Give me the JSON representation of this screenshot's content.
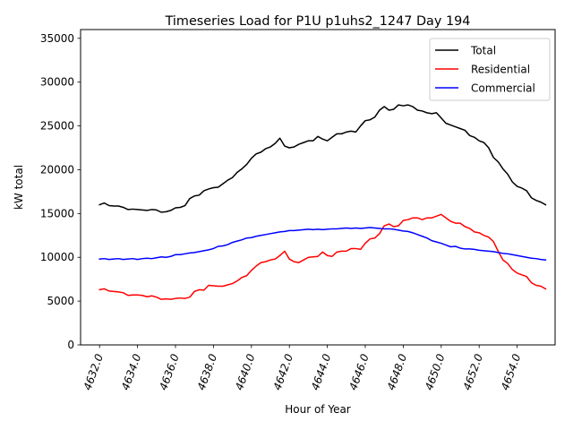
{
  "chart_data": {
    "type": "line",
    "title": "Timeseries Load for P1U p1uhs2_1247  Day 194",
    "xlabel": "Hour of Year",
    "ylabel": "kW total",
    "xlim": [
      4631.0,
      4656.0
    ],
    "ylim": [
      0,
      36000
    ],
    "x_ticks": [
      4632.0,
      4634.0,
      4636.0,
      4638.0,
      4640.0,
      4642.0,
      4644.0,
      4646.0,
      4648.0,
      4650.0,
      4652.0,
      4654.0
    ],
    "x_tick_labels": [
      "4632.0",
      "4634.0",
      "4636.0",
      "4638.0",
      "4640.0",
      "4642.0",
      "4644.0",
      "4646.0",
      "4648.0",
      "4650.0",
      "4652.0",
      "4654.0"
    ],
    "y_ticks": [
      0,
      5000,
      10000,
      15000,
      20000,
      25000,
      30000,
      35000
    ],
    "y_tick_labels": [
      "0",
      "5000",
      "10000",
      "15000",
      "20000",
      "25000",
      "30000",
      "35000"
    ],
    "legend_position": "top-right",
    "x_start": 4632.0,
    "x_step": 0.25,
    "series": [
      {
        "name": "Total",
        "color": "#000000",
        "values": [
          16000,
          16200,
          15900,
          15850,
          15850,
          15700,
          15450,
          15500,
          15450,
          15400,
          15350,
          15450,
          15400,
          15150,
          15200,
          15350,
          15650,
          15700,
          15900,
          16700,
          17000,
          17100,
          17600,
          17800,
          17950,
          18000,
          18400,
          18800,
          19100,
          19700,
          20100,
          20600,
          21300,
          21800,
          22000,
          22400,
          22600,
          23000,
          23600,
          22700,
          22500,
          22600,
          22900,
          23100,
          23300,
          23300,
          23800,
          23500,
          23300,
          23700,
          24100,
          24100,
          24300,
          24400,
          24300,
          25000,
          25600,
          25700,
          26000,
          26800,
          27200,
          26800,
          26900,
          27400,
          27300,
          27400,
          27200,
          26800,
          26700,
          26500,
          26400,
          26500,
          25900,
          25300,
          25100,
          24900,
          24700,
          24500,
          23900,
          23700,
          23300,
          23100,
          22500,
          21400,
          20900,
          20100,
          19500,
          18600,
          18100,
          17900,
          17600,
          16800,
          16500,
          16300,
          16000
        ]
      },
      {
        "name": "Residential",
        "color": "#ff0000",
        "values": [
          6300,
          6400,
          6150,
          6100,
          6050,
          5950,
          5650,
          5700,
          5700,
          5650,
          5500,
          5600,
          5450,
          5200,
          5250,
          5200,
          5300,
          5350,
          5300,
          5450,
          6100,
          6300,
          6250,
          6800,
          6750,
          6700,
          6700,
          6850,
          7000,
          7300,
          7700,
          7900,
          8500,
          9000,
          9400,
          9500,
          9700,
          9800,
          10200,
          10700,
          9800,
          9500,
          9400,
          9700,
          10000,
          10050,
          10100,
          10600,
          10200,
          10100,
          10600,
          10700,
          10700,
          11000,
          11000,
          10900,
          11600,
          12100,
          12200,
          12700,
          13600,
          13800,
          13500,
          13600,
          14200,
          14300,
          14500,
          14500,
          14300,
          14500,
          14500,
          14700,
          14900,
          14500,
          14100,
          13900,
          13900,
          13500,
          13300,
          12900,
          12800,
          12500,
          12300,
          11800,
          10700,
          9700,
          9300,
          8600,
          8200,
          8000,
          7800,
          7100,
          6800,
          6700,
          6400
        ]
      },
      {
        "name": "Commercial",
        "color": "#0000ff",
        "values": [
          9800,
          9850,
          9750,
          9800,
          9850,
          9750,
          9800,
          9850,
          9750,
          9850,
          9900,
          9850,
          9950,
          10050,
          10000,
          10100,
          10300,
          10300,
          10400,
          10500,
          10550,
          10650,
          10750,
          10850,
          11000,
          11250,
          11300,
          11450,
          11700,
          11850,
          12000,
          12200,
          12250,
          12400,
          12500,
          12600,
          12700,
          12800,
          12900,
          12950,
          13050,
          13050,
          13100,
          13150,
          13200,
          13150,
          13200,
          13150,
          13200,
          13250,
          13250,
          13300,
          13350,
          13300,
          13350,
          13300,
          13350,
          13400,
          13350,
          13300,
          13250,
          13250,
          13200,
          13100,
          13000,
          12950,
          12800,
          12600,
          12400,
          12200,
          11900,
          11750,
          11600,
          11400,
          11200,
          11250,
          11050,
          10950,
          10950,
          10900,
          10800,
          10750,
          10700,
          10650,
          10550,
          10450,
          10400,
          10300,
          10200,
          10100,
          10000,
          9900,
          9850,
          9750,
          9700
        ]
      }
    ]
  }
}
